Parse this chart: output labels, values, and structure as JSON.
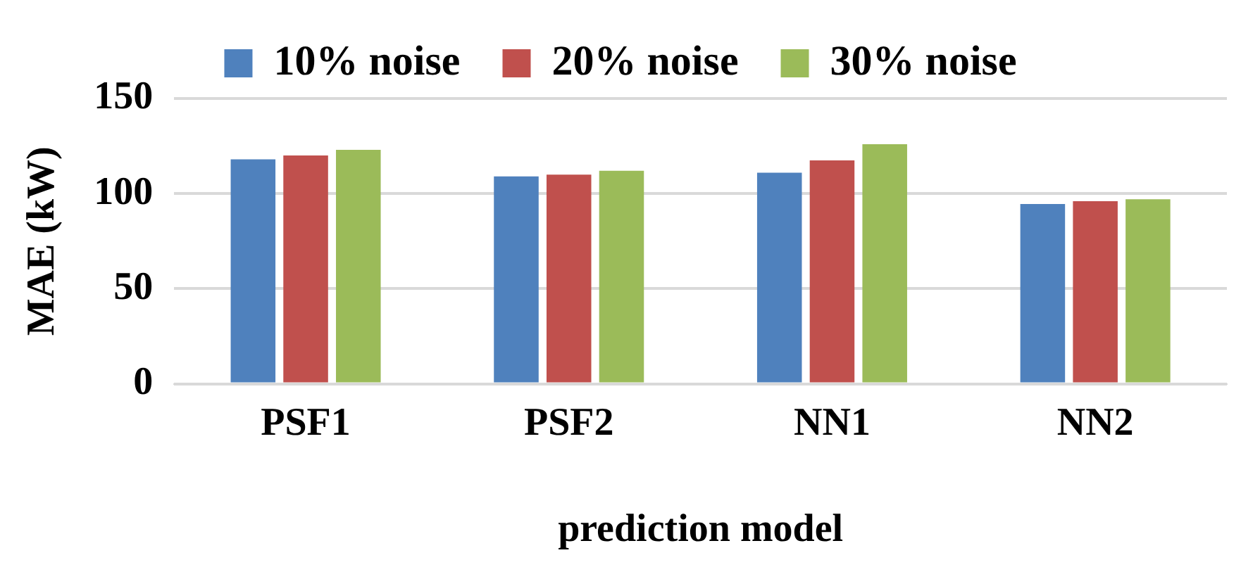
{
  "chart_data": {
    "type": "bar",
    "xlabel": "prediction model",
    "ylabel": "MAE (kW)",
    "categories": [
      "PSF1",
      "PSF2",
      "NN1",
      "NN2"
    ],
    "series": [
      {
        "name": "10% noise",
        "color": "#4f81bd",
        "values": [
          118,
          109,
          111,
          94.5
        ]
      },
      {
        "name": "20% noise",
        "color": "#c0504d",
        "values": [
          120,
          110,
          117.5,
          96
        ]
      },
      {
        "name": "30% noise",
        "color": "#9bbb59",
        "values": [
          123,
          112,
          126,
          97
        ]
      }
    ],
    "ylim": [
      0,
      150
    ],
    "yticks": [
      0,
      50,
      100,
      150
    ],
    "grid": "y",
    "legend": "top"
  }
}
